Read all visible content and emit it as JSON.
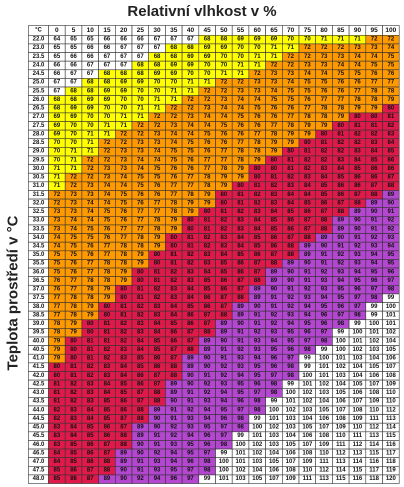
{
  "chart_data": {
    "type": "heatmap",
    "title": "Relativní vlhkost v %",
    "xlabel": "",
    "ylabel": "Teplota prostředí v °C",
    "corner_label": "°C",
    "x": [
      "0",
      "5",
      "10",
      "15",
      "20",
      "25",
      "30",
      "35",
      "40",
      "45",
      "50",
      "55",
      "60",
      "65",
      "70",
      "75",
      "80",
      "85",
      "90",
      "95",
      "100"
    ],
    "y": [
      "22.0",
      "23.0",
      "23.5",
      "24.0",
      "24.5",
      "25.0",
      "25.5",
      "26.0",
      "26.5",
      "27.0",
      "27.5",
      "28.0",
      "28.5",
      "29.0",
      "29.5",
      "30.0",
      "30.5",
      "31.0",
      "31.5",
      "32.0",
      "32.5",
      "33.0",
      "33.5",
      "34.0",
      "34.5",
      "35.0",
      "35.5",
      "36.0",
      "36.5",
      "37.0",
      "37.5",
      "38.0",
      "38.5",
      "39.0",
      "39.5",
      "40.0",
      "40.5",
      "41.0",
      "41.5",
      "42.0",
      "42.5",
      "43.0",
      "43.5",
      "44.0",
      "44.5",
      "45.0",
      "45.5",
      "46.0",
      "46.5",
      "47.0",
      "47.5",
      "48.0"
    ],
    "values": [
      [
        64,
        65,
        65,
        66,
        66,
        66,
        67,
        67,
        67,
        68,
        68,
        69,
        69,
        69,
        70,
        70,
        71,
        71,
        71,
        72,
        72
      ],
      [
        65,
        65,
        66,
        66,
        67,
        67,
        67,
        68,
        68,
        69,
        69,
        70,
        70,
        71,
        71,
        72,
        72,
        72,
        73,
        73,
        74
      ],
      [
        65,
        66,
        66,
        67,
        67,
        67,
        68,
        68,
        69,
        69,
        70,
        70,
        71,
        71,
        72,
        72,
        73,
        73,
        74,
        74,
        75
      ],
      [
        66,
        66,
        67,
        67,
        67,
        68,
        68,
        69,
        69,
        70,
        70,
        71,
        71,
        72,
        72,
        73,
        73,
        74,
        74,
        75,
        75
      ],
      [
        66,
        67,
        67,
        68,
        68,
        68,
        69,
        69,
        70,
        70,
        71,
        71,
        72,
        73,
        73,
        74,
        74,
        75,
        75,
        76,
        76
      ],
      [
        67,
        67,
        68,
        68,
        69,
        69,
        70,
        70,
        71,
        71,
        72,
        72,
        73,
        73,
        74,
        75,
        75,
        76,
        76,
        77,
        77
      ],
      [
        67,
        68,
        68,
        69,
        69,
        70,
        70,
        71,
        71,
        72,
        72,
        73,
        73,
        74,
        75,
        75,
        76,
        76,
        77,
        78,
        78
      ],
      [
        68,
        68,
        69,
        69,
        70,
        70,
        71,
        71,
        72,
        72,
        73,
        74,
        74,
        75,
        75,
        76,
        77,
        77,
        78,
        78,
        79
      ],
      [
        68,
        69,
        69,
        70,
        70,
        71,
        71,
        72,
        72,
        73,
        74,
        74,
        75,
        76,
        76,
        77,
        78,
        78,
        79,
        79,
        80
      ],
      [
        69,
        69,
        70,
        70,
        71,
        71,
        72,
        72,
        73,
        74,
        74,
        75,
        76,
        76,
        77,
        78,
        78,
        79,
        80,
        80,
        81
      ],
      [
        69,
        70,
        70,
        71,
        71,
        72,
        72,
        73,
        74,
        74,
        75,
        76,
        76,
        77,
        78,
        79,
        79,
        80,
        81,
        81,
        82
      ],
      [
        69,
        70,
        71,
        71,
        72,
        72,
        73,
        74,
        74,
        75,
        76,
        76,
        77,
        78,
        79,
        79,
        80,
        81,
        82,
        82,
        83
      ],
      [
        70,
        70,
        71,
        72,
        72,
        73,
        73,
        74,
        75,
        76,
        76,
        77,
        78,
        79,
        79,
        80,
        81,
        82,
        82,
        83,
        84
      ],
      [
        70,
        71,
        71,
        72,
        73,
        73,
        74,
        75,
        75,
        76,
        77,
        78,
        78,
        79,
        80,
        81,
        82,
        82,
        83,
        84,
        85
      ],
      [
        70,
        71,
        72,
        72,
        73,
        74,
        74,
        75,
        76,
        77,
        77,
        78,
        79,
        80,
        81,
        82,
        82,
        83,
        84,
        85,
        86
      ],
      [
        71,
        71,
        72,
        73,
        73,
        74,
        75,
        76,
        76,
        77,
        78,
        79,
        80,
        80,
        81,
        82,
        83,
        84,
        85,
        86,
        86
      ],
      [
        71,
        72,
        72,
        73,
        74,
        75,
        75,
        76,
        77,
        78,
        79,
        79,
        80,
        81,
        82,
        83,
        84,
        85,
        86,
        86,
        87
      ],
      [
        71,
        72,
        73,
        74,
        74,
        75,
        76,
        77,
        77,
        78,
        79,
        80,
        81,
        82,
        83,
        84,
        85,
        86,
        86,
        87,
        88
      ],
      [
        72,
        73,
        73,
        74,
        75,
        76,
        76,
        77,
        78,
        79,
        80,
        81,
        82,
        83,
        84,
        84,
        85,
        86,
        87,
        88,
        89
      ],
      [
        72,
        73,
        74,
        74,
        75,
        76,
        77,
        78,
        79,
        79,
        80,
        81,
        82,
        83,
        84,
        85,
        86,
        87,
        88,
        89,
        90
      ],
      [
        73,
        73,
        74,
        75,
        76,
        77,
        77,
        78,
        79,
        80,
        81,
        82,
        83,
        84,
        85,
        86,
        87,
        88,
        89,
        90,
        91
      ],
      [
        73,
        74,
        74,
        75,
        76,
        77,
        78,
        79,
        80,
        81,
        82,
        83,
        84,
        85,
        86,
        87,
        88,
        89,
        90,
        91,
        92
      ],
      [
        73,
        74,
        75,
        76,
        77,
        77,
        78,
        79,
        80,
        81,
        82,
        83,
        84,
        85,
        86,
        87,
        88,
        89,
        90,
        91,
        92
      ],
      [
        74,
        75,
        75,
        76,
        77,
        78,
        79,
        80,
        81,
        82,
        83,
        84,
        85,
        86,
        87,
        88,
        89,
        90,
        91,
        92,
        93
      ],
      [
        74,
        75,
        76,
        77,
        78,
        78,
        79,
        80,
        81,
        82,
        83,
        84,
        85,
        86,
        88,
        89,
        90,
        91,
        92,
        93,
        94
      ],
      [
        75,
        75,
        76,
        77,
        78,
        79,
        80,
        81,
        82,
        83,
        84,
        85,
        86,
        87,
        88,
        89,
        91,
        92,
        93,
        94,
        95
      ],
      [
        75,
        76,
        77,
        78,
        78,
        79,
        80,
        81,
        82,
        83,
        85,
        86,
        87,
        88,
        89,
        90,
        91,
        92,
        93,
        94,
        95
      ],
      [
        75,
        76,
        77,
        78,
        79,
        80,
        81,
        82,
        83,
        84,
        85,
        86,
        87,
        89,
        90,
        91,
        92,
        93,
        94,
        95,
        96
      ],
      [
        76,
        77,
        78,
        78,
        79,
        80,
        81,
        82,
        83,
        85,
        86,
        87,
        88,
        89,
        90,
        91,
        93,
        94,
        95,
        96,
        97
      ],
      [
        76,
        77,
        78,
        79,
        80,
        81,
        82,
        83,
        84,
        85,
        86,
        87,
        89,
        90,
        91,
        92,
        93,
        95,
        96,
        97,
        98
      ],
      [
        77,
        78,
        78,
        79,
        80,
        81,
        82,
        83,
        84,
        86,
        87,
        88,
        89,
        91,
        92,
        93,
        94,
        95,
        97,
        98,
        99
      ],
      [
        77,
        78,
        79,
        80,
        81,
        82,
        83,
        84,
        85,
        86,
        87,
        89,
        90,
        91,
        92,
        94,
        95,
        96,
        97,
        99,
        100
      ],
      [
        77,
        78,
        79,
        80,
        81,
        82,
        83,
        84,
        86,
        87,
        88,
        89,
        91,
        92,
        93,
        94,
        96,
        97,
        98,
        99,
        101
      ],
      [
        78,
        79,
        80,
        81,
        82,
        83,
        84,
        85,
        86,
        87,
        89,
        90,
        91,
        92,
        94,
        95,
        96,
        98,
        99,
        100,
        101
      ],
      [
        78,
        79,
        80,
        81,
        82,
        83,
        84,
        86,
        87,
        88,
        89,
        91,
        92,
        93,
        95,
        96,
        97,
        99,
        100,
        101,
        102
      ],
      [
        79,
        80,
        81,
        81,
        82,
        84,
        85,
        86,
        87,
        89,
        90,
        91,
        93,
        94,
        95,
        97,
        98,
        100,
        101,
        102,
        104
      ],
      [
        79,
        80,
        81,
        82,
        83,
        84,
        85,
        87,
        88,
        89,
        91,
        92,
        93,
        95,
        96,
        98,
        99,
        100,
        102,
        103,
        105
      ],
      [
        79,
        80,
        81,
        82,
        83,
        85,
        86,
        87,
        89,
        90,
        91,
        93,
        94,
        96,
        97,
        99,
        100,
        101,
        103,
        104,
        106
      ],
      [
        80,
        81,
        82,
        83,
        84,
        85,
        86,
        88,
        89,
        90,
        92,
        93,
        95,
        96,
        98,
        99,
        101,
        102,
        104,
        105,
        107
      ],
      [
        80,
        81,
        82,
        83,
        84,
        86,
        87,
        88,
        90,
        91,
        92,
        94,
        95,
        97,
        98,
        100,
        101,
        103,
        104,
        106,
        108
      ],
      [
        81,
        82,
        83,
        84,
        85,
        86,
        87,
        89,
        90,
        92,
        93,
        95,
        96,
        98,
        99,
        101,
        102,
        104,
        105,
        107,
        109
      ],
      [
        81,
        82,
        83,
        84,
        85,
        87,
        88,
        89,
        91,
        92,
        94,
        95,
        97,
        98,
        100,
        102,
        103,
        105,
        106,
        108,
        110
      ],
      [
        81,
        82,
        83,
        85,
        86,
        87,
        88,
        90,
        91,
        93,
        94,
        96,
        98,
        99,
        101,
        102,
        104,
        106,
        107,
        109,
        110
      ],
      [
        82,
        83,
        84,
        85,
        86,
        88,
        89,
        91,
        92,
        94,
        95,
        97,
        98,
        100,
        102,
        103,
        105,
        107,
        108,
        110,
        112
      ],
      [
        82,
        83,
        84,
        85,
        87,
        88,
        90,
        91,
        93,
        94,
        96,
        98,
        99,
        101,
        103,
        104,
        106,
        108,
        109,
        111,
        113
      ],
      [
        83,
        84,
        85,
        86,
        87,
        89,
        90,
        92,
        93,
        95,
        97,
        98,
        100,
        102,
        103,
        105,
        107,
        109,
        110,
        112,
        114
      ],
      [
        83,
        84,
        85,
        86,
        88,
        89,
        91,
        92,
        94,
        96,
        97,
        99,
        101,
        103,
        104,
        106,
        108,
        110,
        111,
        113,
        115
      ],
      [
        83,
        85,
        86,
        87,
        88,
        90,
        91,
        93,
        95,
        96,
        98,
        100,
        102,
        103,
        105,
        107,
        109,
        111,
        112,
        114,
        116
      ],
      [
        84,
        85,
        86,
        87,
        89,
        90,
        92,
        94,
        95,
        97,
        99,
        101,
        102,
        104,
        106,
        108,
        110,
        112,
        113,
        115,
        117
      ],
      [
        84,
        85,
        86,
        88,
        89,
        91,
        93,
        94,
        96,
        98,
        100,
        101,
        103,
        105,
        107,
        109,
        111,
        113,
        114,
        116,
        118
      ],
      [
        85,
        86,
        87,
        88,
        90,
        91,
        93,
        95,
        97,
        98,
        100,
        102,
        104,
        106,
        108,
        110,
        112,
        114,
        115,
        117,
        119
      ],
      [
        85,
        86,
        87,
        89,
        90,
        92,
        94,
        96,
        97,
        99,
        101,
        103,
        105,
        107,
        109,
        111,
        113,
        115,
        116,
        118,
        120
      ]
    ],
    "color_scale": [
      {
        "max": 67,
        "color": "#ffffff"
      },
      {
        "max": 71,
        "color": "#ffff00"
      },
      {
        "max": 79,
        "color": "#ff9900"
      },
      {
        "max": 88,
        "color": "#e0194b"
      },
      {
        "max": 98,
        "color": "#b347d0"
      },
      {
        "max": 999,
        "color": "#ffffff"
      }
    ],
    "grid": true,
    "legend": "none"
  }
}
